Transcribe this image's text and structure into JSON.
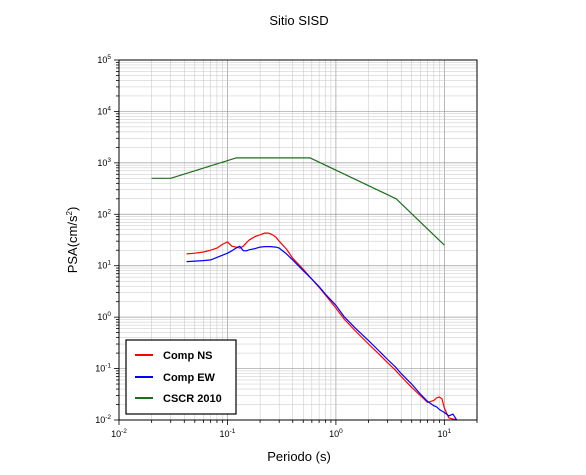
{
  "chart_data": {
    "type": "line",
    "title": "Sitio SISD",
    "xlabel": "Periodo (s)",
    "ylabel_base": "PSA(cm/s",
    "ylabel_exp": "2",
    "ylabel_close": ")",
    "x_scale": "log",
    "y_scale": "log",
    "xlim": [
      0.01,
      20
    ],
    "ylim": [
      0.01,
      100000
    ],
    "grid": true,
    "legend_position": "bottom-left",
    "x_ticks": [
      {
        "value": 0.01,
        "base": "10",
        "exp": "-2"
      },
      {
        "value": 0.1,
        "base": "10",
        "exp": "-1"
      },
      {
        "value": 1,
        "base": "10",
        "exp": "0"
      },
      {
        "value": 10,
        "base": "10",
        "exp": "1"
      }
    ],
    "y_ticks": [
      {
        "value": 0.01,
        "base": "10",
        "exp": "-2"
      },
      {
        "value": 0.1,
        "base": "10",
        "exp": "-1"
      },
      {
        "value": 1,
        "base": "10",
        "exp": "0"
      },
      {
        "value": 10,
        "base": "10",
        "exp": "1"
      },
      {
        "value": 100,
        "base": "10",
        "exp": "2"
      },
      {
        "value": 1000,
        "base": "10",
        "exp": "3"
      },
      {
        "value": 10000,
        "base": "10",
        "exp": "4"
      },
      {
        "value": 100000,
        "base": "10",
        "exp": "5"
      }
    ],
    "series": [
      {
        "name": "Comp NS",
        "color": "#ff0000",
        "x": [
          0.042,
          0.05,
          0.06,
          0.07,
          0.08,
          0.09,
          0.1,
          0.11,
          0.12,
          0.13,
          0.14,
          0.15,
          0.16,
          0.18,
          0.2,
          0.22,
          0.24,
          0.26,
          0.28,
          0.3,
          0.35,
          0.4,
          0.5,
          0.6,
          0.7,
          0.8,
          1.0,
          1.2,
          1.5,
          2.0,
          2.5,
          3.0,
          3.5,
          4.0,
          5.0,
          6.0,
          7.0,
          8.0,
          8.5,
          9.0,
          9.5,
          10.0,
          11.0,
          12.0,
          13.0
        ],
        "y": [
          17,
          17.5,
          18.5,
          20,
          22,
          26,
          29,
          24,
          23,
          22,
          24,
          28,
          32,
          37,
          40,
          43,
          43,
          40,
          36,
          30,
          21,
          14,
          8.5,
          5.5,
          3.8,
          2.7,
          1.5,
          0.9,
          0.55,
          0.3,
          0.19,
          0.13,
          0.095,
          0.07,
          0.043,
          0.03,
          0.022,
          0.024,
          0.027,
          0.028,
          0.026,
          0.017,
          0.011,
          0.0105,
          0.01
        ]
      },
      {
        "name": "Comp EW",
        "color": "#0000ff",
        "x": [
          0.042,
          0.05,
          0.06,
          0.07,
          0.08,
          0.09,
          0.1,
          0.11,
          0.12,
          0.13,
          0.14,
          0.15,
          0.16,
          0.18,
          0.2,
          0.22,
          0.25,
          0.28,
          0.3,
          0.35,
          0.4,
          0.5,
          0.6,
          0.7,
          0.8,
          1.0,
          1.2,
          1.5,
          2.0,
          2.5,
          3.0,
          3.5,
          4.0,
          5.0,
          6.0,
          7.0,
          8.0,
          8.5,
          9.0,
          10.0,
          11.0,
          12.0,
          13.0
        ],
        "y": [
          12,
          12.3,
          12.6,
          13,
          14.5,
          16,
          17.5,
          19.5,
          22,
          24,
          19.5,
          19.5,
          20.5,
          21.5,
          23,
          23.5,
          23.5,
          23,
          22,
          17,
          13,
          8,
          5.5,
          3.9,
          2.8,
          1.7,
          1.0,
          0.62,
          0.35,
          0.22,
          0.15,
          0.11,
          0.08,
          0.05,
          0.032,
          0.023,
          0.019,
          0.018,
          0.016,
          0.014,
          0.012,
          0.013,
          0.01
        ]
      },
      {
        "name": "CSCR 2010",
        "color": "#1e6e1e",
        "x": [
          0.02,
          0.03,
          0.12,
          0.58,
          3.6,
          10.0
        ],
        "y": [
          500,
          500,
          1250,
          1250,
          200,
          25
        ]
      }
    ]
  }
}
